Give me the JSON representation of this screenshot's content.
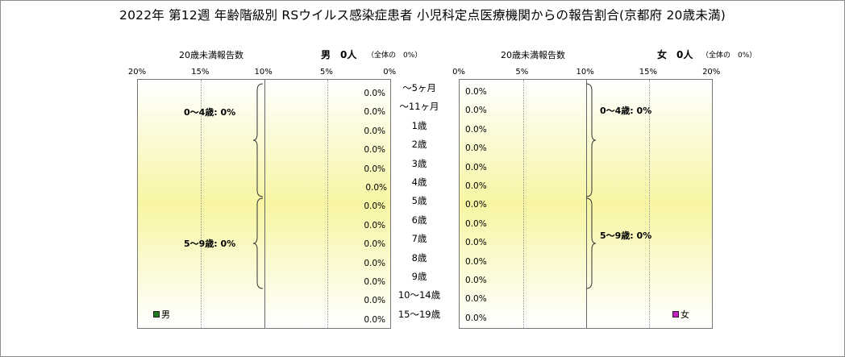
{
  "title": "2022年 第12週 年齢階級別 RSウイルス感染症患者 小児科定点医療機関からの報告割合(京都府 20歳未満)",
  "chart_data": {
    "type": "bar",
    "orientation": "horizontal-pyramid",
    "categories": [
      "～5ヶ月",
      "～11ヶ月",
      "1歳",
      "2歳",
      "3歳",
      "4歳",
      "5歳",
      "6歳",
      "7歳",
      "8歳",
      "9歳",
      "10～14歳",
      "15～19歳"
    ],
    "series": [
      {
        "name": "男",
        "values": [
          0,
          0,
          0,
          0,
          0,
          0,
          0,
          0,
          0,
          0,
          0,
          0,
          0
        ],
        "labels": [
          "0.0%",
          "0.0%",
          "0.0%",
          "0.0%",
          "0.0%",
          "0.0%",
          "0.0%",
          "0.0%",
          "0.0%",
          "0.0%",
          "0.0%",
          "0.0%",
          "0.0%"
        ],
        "color": "#1e7a1e"
      },
      {
        "name": "女",
        "values": [
          0,
          0,
          0,
          0,
          0,
          0,
          0,
          0,
          0,
          0,
          0,
          0,
          0
        ],
        "labels": [
          "0.0%",
          "0.0%",
          "0.0%",
          "0.0%",
          "0.0%",
          "0.0%",
          "0.0%",
          "0.0%",
          "0.0%",
          "0.0%",
          "0.0%",
          "0.0%",
          "0.0%"
        ],
        "color": "#c81ec8"
      }
    ],
    "xlim": [
      0,
      20
    ],
    "male_ticks": [
      "20%",
      "15%",
      "10%",
      "5%",
      "0%"
    ],
    "female_ticks": [
      "0%",
      "5%",
      "10%",
      "15%",
      "20%"
    ],
    "grid": true
  },
  "male_header": {
    "axis_label": "20歳未満報告数",
    "count": "男　0人",
    "share": "（全体の　0%）"
  },
  "female_header": {
    "axis_label": "20歳未満報告数",
    "count": "女　0人",
    "share": "（全体の　0%）"
  },
  "groups": {
    "g04": "0～4歳: 0%",
    "g59": "5～9歳: 0%"
  },
  "legend": {
    "male": "男",
    "female": "女"
  }
}
